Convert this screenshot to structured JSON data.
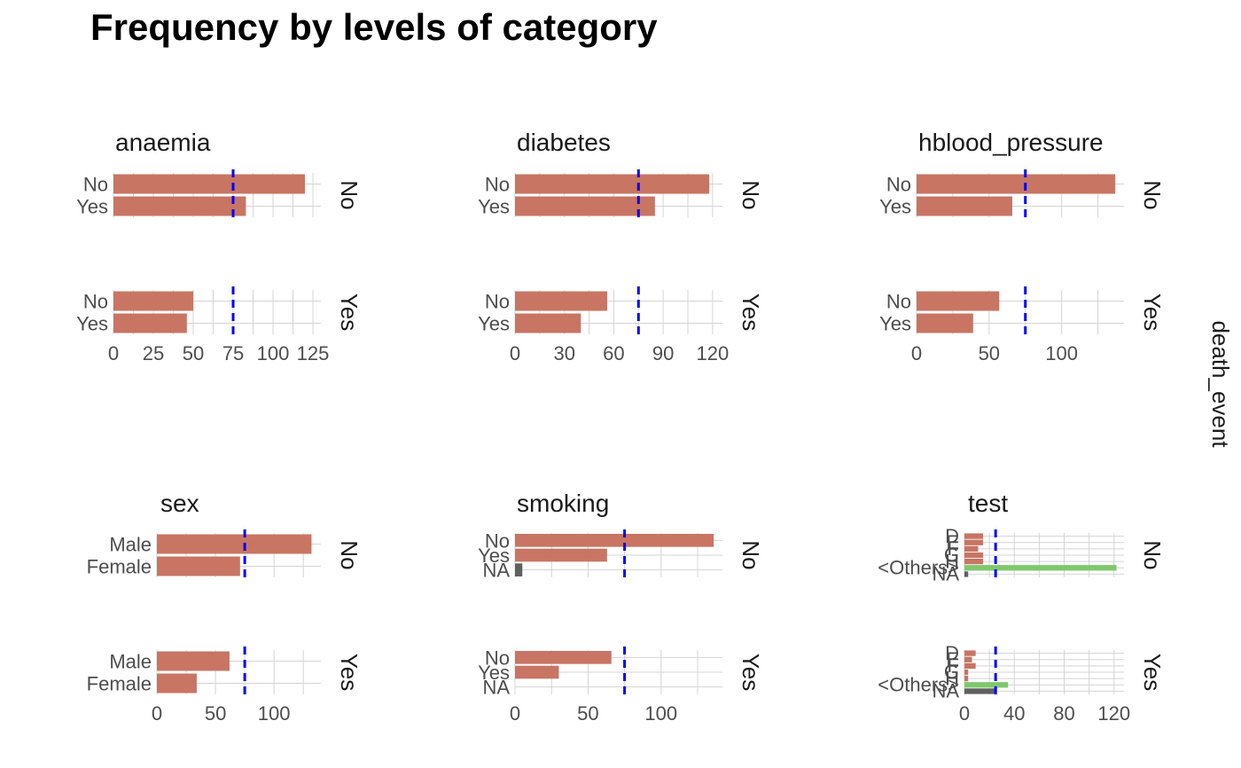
{
  "chart_data": {
    "type": "bar",
    "title": "Frequency by levels of category",
    "facet_label": "death_event",
    "strip_levels": [
      "No",
      "Yes"
    ],
    "colors": {
      "level": "#c87563",
      "others": "#7ec86a",
      "na": "#606060",
      "reference_line": "#0000ff",
      "grid": "#d4d4d4"
    },
    "panels": [
      {
        "name": "anaemia",
        "categories": [
          "No",
          "Yes"
        ],
        "xlim": [
          0,
          130
        ],
        "ticks": [
          0,
          25,
          50,
          75,
          100,
          125
        ],
        "reference_line": 75,
        "series": [
          {
            "level": "No",
            "values": [
              120,
              83
            ]
          },
          {
            "level": "Yes",
            "values": [
              50,
              46
            ]
          }
        ]
      },
      {
        "name": "diabetes",
        "categories": [
          "No",
          "Yes"
        ],
        "xlim": [
          0,
          126
        ],
        "ticks": [
          0,
          30,
          60,
          90,
          120
        ],
        "reference_line": 75,
        "series": [
          {
            "level": "No",
            "values": [
              118,
              85
            ]
          },
          {
            "level": "Yes",
            "values": [
              56,
              40
            ]
          }
        ]
      },
      {
        "name": "hblood_pressure",
        "categories": [
          "No",
          "Yes"
        ],
        "xlim": [
          0,
          143
        ],
        "ticks": [
          0,
          50,
          100
        ],
        "reference_line": 75,
        "series": [
          {
            "level": "No",
            "values": [
              137,
              66
            ]
          },
          {
            "level": "Yes",
            "values": [
              57,
              39
            ]
          }
        ]
      },
      {
        "name": "sex",
        "categories": [
          "Male",
          "Female"
        ],
        "xlim": [
          0,
          140
        ],
        "ticks": [
          0,
          50,
          100
        ],
        "reference_line": 75,
        "series": [
          {
            "level": "No",
            "values": [
              132,
              71
            ]
          },
          {
            "level": "Yes",
            "values": [
              62,
              34
            ]
          }
        ]
      },
      {
        "name": "smoking",
        "categories": [
          "No",
          "Yes",
          "NA"
        ],
        "xlim": [
          0,
          142
        ],
        "ticks": [
          0,
          50,
          100
        ],
        "reference_line": 75,
        "series": [
          {
            "level": "No",
            "values": [
              136,
              63,
              5
            ]
          },
          {
            "level": "Yes",
            "values": [
              66,
              30,
              0
            ]
          }
        ]
      },
      {
        "name": "test",
        "categories": [
          "D",
          "E",
          "F",
          "G",
          "H",
          "<Others>",
          "NA"
        ],
        "xlim": [
          0,
          128
        ],
        "ticks": [
          0,
          40,
          80,
          120
        ],
        "reference_line": 25,
        "series": [
          {
            "level": "No",
            "values": [
              15,
              15,
              11,
              15,
              15,
              122,
              3
            ]
          },
          {
            "level": "Yes",
            "values": [
              9,
              6,
              9,
              3,
              3,
              35,
              25
            ]
          }
        ]
      }
    ]
  }
}
